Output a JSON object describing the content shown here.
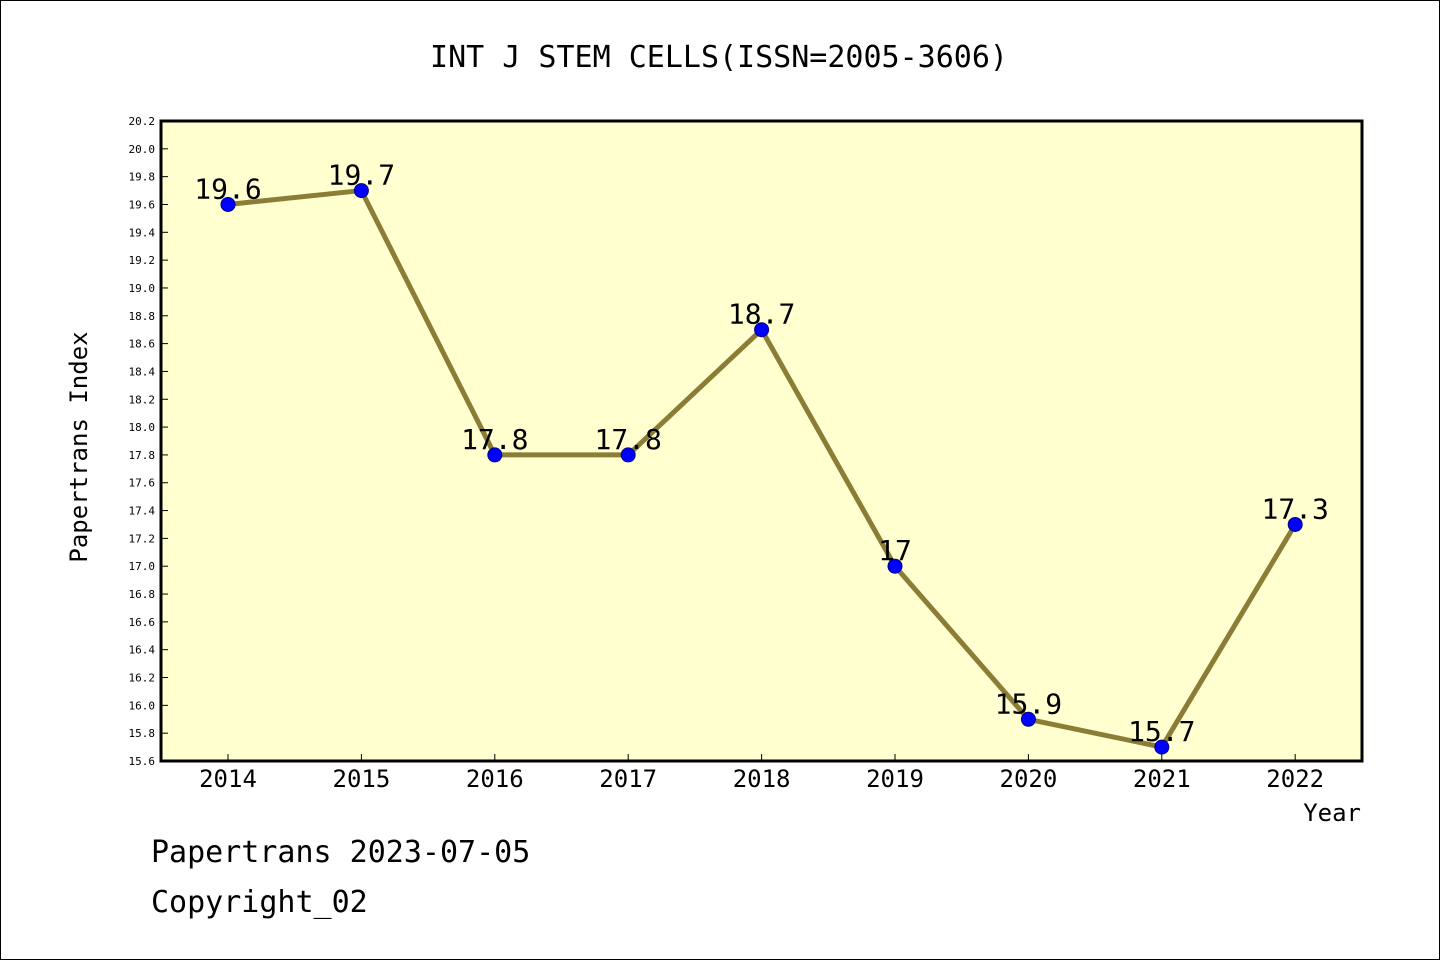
{
  "chart_data": {
    "type": "line",
    "title": "INT J STEM CELLS(ISSN=2005-3606)",
    "xlabel": "Year",
    "ylabel": "Papertrans Index",
    "categories": [
      "2014",
      "2015",
      "2016",
      "2017",
      "2018",
      "2019",
      "2020",
      "2021",
      "2022"
    ],
    "series": [
      {
        "values": [
          19.6,
          19.7,
          17.8,
          17.8,
          18.7,
          17.0,
          15.9,
          15.7,
          17.3
        ],
        "labels": [
          "19.6",
          "19.7",
          "17.8",
          "17.8",
          "18.7",
          "17",
          "15.9",
          "15.7",
          "17.3"
        ]
      }
    ],
    "ylim": [
      15.6,
      20.2
    ],
    "yticks": [
      "15.6",
      "15.8",
      "16.0",
      "16.2",
      "16.4",
      "16.6",
      "16.8",
      "17.0",
      "17.2",
      "17.4",
      "17.6",
      "17.8",
      "18.0",
      "18.2",
      "18.4",
      "18.6",
      "18.8",
      "19.0",
      "19.2",
      "19.4",
      "19.6",
      "19.8",
      "20.0",
      "20.2"
    ],
    "grid": false,
    "colors": {
      "plot_background": "#ffffd0",
      "line": "#8b7d35",
      "marker": "#0000ff"
    }
  },
  "footer": {
    "source": "Papertrans 2023-07-05",
    "copyright": "Copyright_02"
  }
}
